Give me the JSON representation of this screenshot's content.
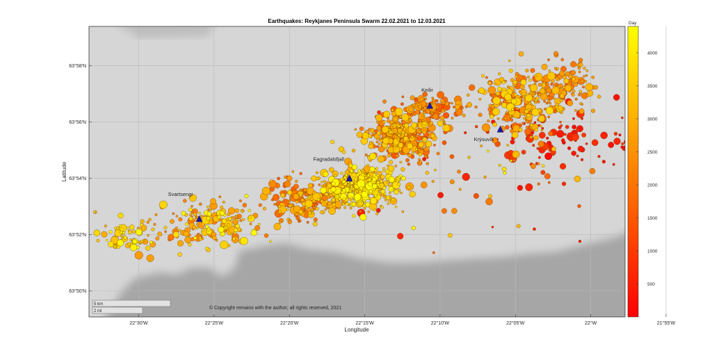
{
  "chart_data": {
    "type": "scatter",
    "title": "Earthquakes: Reykjanes Peninsula Swarm 22.02.2021 to 12.03.2021",
    "xlabel": "Longitude",
    "ylabel": "Latitude",
    "xlim": [
      -22.555,
      -21.962
    ],
    "ylim": [
      63.818,
      63.99
    ],
    "x_ticks": [
      {
        "value": -22.5,
        "label": "22°30'W"
      },
      {
        "value": -22.41667,
        "label": "22°25'W"
      },
      {
        "value": -22.33333,
        "label": "22°20'W"
      },
      {
        "value": -22.25,
        "label": "22°15'W"
      },
      {
        "value": -22.16667,
        "label": "22°10'W"
      },
      {
        "value": -22.08333,
        "label": "22°05'W"
      },
      {
        "value": -22.0,
        "label": "22°W"
      },
      {
        "value": -21.91667,
        "label": "21°55'W"
      }
    ],
    "y_ticks": [
      {
        "value": 63.83333,
        "label": "63°50'N"
      },
      {
        "value": 63.86667,
        "label": "63°52'N"
      },
      {
        "value": 63.9,
        "label": "63°54'N"
      },
      {
        "value": 63.93333,
        "label": "63°56'N"
      },
      {
        "value": 63.96667,
        "label": "63°58'N"
      }
    ],
    "grid": true,
    "colorbar": {
      "label": "Day",
      "min": 0,
      "max": 4400,
      "ticks": [
        500,
        1000,
        1500,
        2000,
        2500,
        3000,
        3500,
        4000
      ],
      "colormap": [
        "#ff0000",
        "#ff8000",
        "#ffff00"
      ]
    },
    "stations": [
      {
        "name": "Svartsengi",
        "lon": -22.433,
        "lat": 63.876
      },
      {
        "name": "Fagradalsfjall",
        "lon": -22.267,
        "lat": 63.9
      },
      {
        "name": "Keilir",
        "lon": -22.178,
        "lat": 63.943
      },
      {
        "name": "Krýsuvík",
        "lon": -22.1,
        "lat": 63.929
      }
    ],
    "clusters": [
      {
        "lon": -22.255,
        "lat": 63.895,
        "slon": 0.022,
        "slat": 0.0065,
        "n": 420,
        "day_min": 2800,
        "day_max": 4400
      },
      {
        "lon": -22.21,
        "lat": 63.925,
        "slon": 0.02,
        "slat": 0.007,
        "n": 380,
        "day_min": 1400,
        "day_max": 3600
      },
      {
        "lon": -22.175,
        "lat": 63.942,
        "slon": 0.015,
        "slat": 0.004,
        "n": 120,
        "day_min": 1200,
        "day_max": 3000
      },
      {
        "lon": -22.315,
        "lat": 63.888,
        "slon": 0.022,
        "slat": 0.006,
        "n": 200,
        "day_min": 1500,
        "day_max": 3600
      },
      {
        "lon": -22.42,
        "lat": 63.874,
        "slon": 0.03,
        "slat": 0.007,
        "n": 180,
        "day_min": 2000,
        "day_max": 4400
      },
      {
        "lon": -22.51,
        "lat": 63.866,
        "slon": 0.02,
        "slat": 0.005,
        "n": 70,
        "day_min": 2500,
        "day_max": 4400
      },
      {
        "lon": -22.078,
        "lat": 63.945,
        "slon": 0.022,
        "slat": 0.01,
        "n": 240,
        "day_min": 1500,
        "day_max": 3800
      },
      {
        "lon": -22.03,
        "lat": 63.955,
        "slon": 0.015,
        "slat": 0.007,
        "n": 120,
        "day_min": 1700,
        "day_max": 3300
      },
      {
        "lon": -22.03,
        "lat": 63.924,
        "slon": 0.04,
        "slat": 0.008,
        "n": 90,
        "day_min": 100,
        "day_max": 1000
      },
      {
        "lon": -22.12,
        "lat": 63.905,
        "slon": 0.06,
        "slat": 0.02,
        "n": 70,
        "day_min": 200,
        "day_max": 4400
      }
    ]
  },
  "stations_labels": [
    "Svartsengi",
    "Fagradalsfjall",
    "Keilir",
    "Krýsuvík"
  ],
  "scalebar": {
    "km_label": "5 km",
    "mi_label": "2 mi"
  },
  "copyright": "© Copyright remains with the author; all rights reserved, 2021",
  "colors": {
    "land": "#d6d6d6",
    "sea": "#a6a6a6",
    "station": "#1a1aa8"
  }
}
